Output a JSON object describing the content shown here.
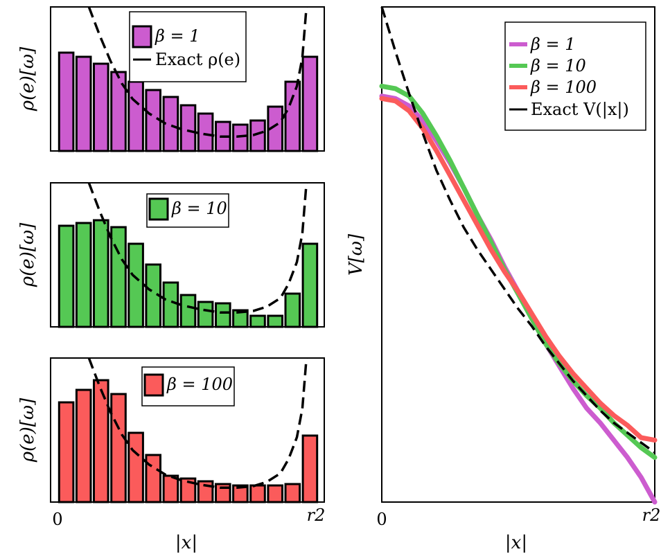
{
  "figure": {
    "panel_left_ylabel": "ρ(e)[ω]",
    "panel_right_ylabel": "V[ω]",
    "xlabel": "|x|",
    "xtick_start": "0",
    "xtick_end": "r2"
  },
  "colors": {
    "beta1": "#cc5ccf",
    "beta10": "#55c854",
    "beta100": "#fb5b5b",
    "exact": "#000000"
  },
  "chart_data": [
    {
      "type": "bar",
      "panel": "top-left",
      "legend": [
        "β = 1",
        "Exact ρ(e)"
      ],
      "legend_position": "top-right",
      "ylabel": "ρ(e)[ω]",
      "xlabel": "",
      "xlim": [
        0,
        1
      ],
      "ylim": [
        0,
        1
      ],
      "bin_centers": [
        0.035,
        0.097,
        0.16,
        0.222,
        0.285,
        0.347,
        0.41,
        0.472,
        0.535,
        0.597,
        0.66,
        0.722,
        0.785,
        0.847,
        0.91
      ],
      "values": [
        0.71,
        0.68,
        0.63,
        0.57,
        0.5,
        0.44,
        0.39,
        0.33,
        0.27,
        0.21,
        0.19,
        0.22,
        0.32,
        0.5,
        0.68
      ],
      "exact_curve": {
        "x": [
          0.14,
          0.18,
          0.22,
          0.26,
          0.3,
          0.36,
          0.42,
          0.48,
          0.55,
          0.62,
          0.68,
          0.74,
          0.79,
          0.84,
          0.87,
          0.9,
          0.92,
          0.935
        ],
        "y": [
          1.0,
          0.8,
          0.62,
          0.47,
          0.36,
          0.26,
          0.19,
          0.15,
          0.12,
          0.1,
          0.1,
          0.11,
          0.14,
          0.2,
          0.3,
          0.45,
          0.65,
          1.0
        ]
      }
    },
    {
      "type": "bar",
      "panel": "middle-left",
      "legend": [
        "β = 10"
      ],
      "legend_position": "top-right",
      "ylabel": "ρ(e)[ω]",
      "xlabel": "",
      "xlim": [
        0,
        1
      ],
      "ylim": [
        0,
        1
      ],
      "bin_centers": [
        0.035,
        0.097,
        0.16,
        0.222,
        0.285,
        0.347,
        0.41,
        0.472,
        0.535,
        0.597,
        0.66,
        0.722,
        0.785,
        0.847,
        0.91
      ],
      "values": [
        0.73,
        0.75,
        0.77,
        0.72,
        0.6,
        0.45,
        0.32,
        0.23,
        0.18,
        0.17,
        0.12,
        0.08,
        0.08,
        0.24,
        0.6
      ],
      "exact_curve": {
        "x": [
          0.14,
          0.18,
          0.22,
          0.26,
          0.3,
          0.36,
          0.42,
          0.48,
          0.55,
          0.62,
          0.68,
          0.74,
          0.79,
          0.84,
          0.87,
          0.9,
          0.92,
          0.935
        ],
        "y": [
          1.0,
          0.8,
          0.62,
          0.47,
          0.36,
          0.26,
          0.19,
          0.15,
          0.12,
          0.1,
          0.1,
          0.11,
          0.14,
          0.2,
          0.3,
          0.45,
          0.65,
          1.0
        ]
      }
    },
    {
      "type": "bar",
      "panel": "bottom-left",
      "legend": [
        "β = 100"
      ],
      "legend_position": "top-right",
      "ylabel": "ρ(e)[ω]",
      "xlabel": "|x|",
      "xlim": [
        0,
        1
      ],
      "ylim": [
        0,
        1
      ],
      "bin_centers": [
        0.035,
        0.097,
        0.16,
        0.222,
        0.285,
        0.347,
        0.41,
        0.472,
        0.535,
        0.597,
        0.66,
        0.722,
        0.785,
        0.847,
        0.91
      ],
      "values": [
        0.72,
        0.81,
        0.88,
        0.78,
        0.5,
        0.34,
        0.19,
        0.17,
        0.15,
        0.13,
        0.12,
        0.12,
        0.12,
        0.13,
        0.48
      ],
      "exact_curve": {
        "x": [
          0.14,
          0.18,
          0.22,
          0.26,
          0.3,
          0.36,
          0.42,
          0.48,
          0.55,
          0.62,
          0.68,
          0.74,
          0.79,
          0.84,
          0.87,
          0.9,
          0.92,
          0.935
        ],
        "y": [
          1.0,
          0.8,
          0.62,
          0.47,
          0.36,
          0.26,
          0.19,
          0.15,
          0.12,
          0.1,
          0.1,
          0.11,
          0.14,
          0.2,
          0.3,
          0.45,
          0.65,
          1.0
        ]
      }
    },
    {
      "type": "line",
      "panel": "right",
      "legend_position": "top-right",
      "ylabel": "V[ω]",
      "xlabel": "|x|",
      "xlim": [
        0,
        1
      ],
      "ylim": [
        0,
        1
      ],
      "series": [
        {
          "name": "β = 1",
          "color": "#cc5ccf",
          "x": [
            0,
            0.05,
            0.1,
            0.15,
            0.2,
            0.25,
            0.3,
            0.35,
            0.4,
            0.45,
            0.5,
            0.55,
            0.6,
            0.65,
            0.7,
            0.75,
            0.8,
            0.85,
            0.9,
            0.95,
            1.0
          ],
          "y": [
            0.82,
            0.815,
            0.8,
            0.77,
            0.73,
            0.685,
            0.635,
            0.58,
            0.53,
            0.475,
            0.425,
            0.37,
            0.32,
            0.275,
            0.23,
            0.19,
            0.16,
            0.125,
            0.09,
            0.05,
            0.0
          ]
        },
        {
          "name": "β = 10",
          "color": "#55c854",
          "x": [
            0,
            0.05,
            0.1,
            0.15,
            0.2,
            0.25,
            0.3,
            0.35,
            0.4,
            0.45,
            0.5,
            0.55,
            0.6,
            0.65,
            0.7,
            0.75,
            0.8,
            0.85,
            0.9,
            0.95,
            1.0
          ],
          "y": [
            0.84,
            0.835,
            0.82,
            0.785,
            0.74,
            0.69,
            0.635,
            0.58,
            0.525,
            0.47,
            0.42,
            0.37,
            0.32,
            0.28,
            0.245,
            0.215,
            0.19,
            0.16,
            0.135,
            0.11,
            0.09
          ]
        },
        {
          "name": "β = 100",
          "color": "#fb5b5b",
          "x": [
            0,
            0.05,
            0.1,
            0.15,
            0.2,
            0.25,
            0.3,
            0.35,
            0.4,
            0.45,
            0.5,
            0.55,
            0.6,
            0.65,
            0.7,
            0.75,
            0.8,
            0.85,
            0.9,
            0.95,
            1.0
          ],
          "y": [
            0.815,
            0.81,
            0.79,
            0.755,
            0.71,
            0.66,
            0.61,
            0.56,
            0.51,
            0.465,
            0.425,
            0.38,
            0.335,
            0.295,
            0.26,
            0.23,
            0.2,
            0.175,
            0.155,
            0.13,
            0.125
          ]
        },
        {
          "name": "Exact V(|x|)",
          "color": "#000000",
          "dashed": true,
          "x": [
            0,
            0.05,
            0.1,
            0.15,
            0.2,
            0.25,
            0.3,
            0.35,
            0.4,
            0.45,
            0.5,
            0.55,
            0.6,
            0.65,
            0.7,
            0.75,
            0.8,
            0.85,
            0.9,
            0.95,
            1.0
          ],
          "y": [
            1.0,
            0.91,
            0.825,
            0.745,
            0.67,
            0.61,
            0.555,
            0.51,
            0.47,
            0.43,
            0.39,
            0.355,
            0.315,
            0.28,
            0.245,
            0.215,
            0.185,
            0.16,
            0.14,
            0.12,
            0.1
          ]
        }
      ]
    }
  ]
}
